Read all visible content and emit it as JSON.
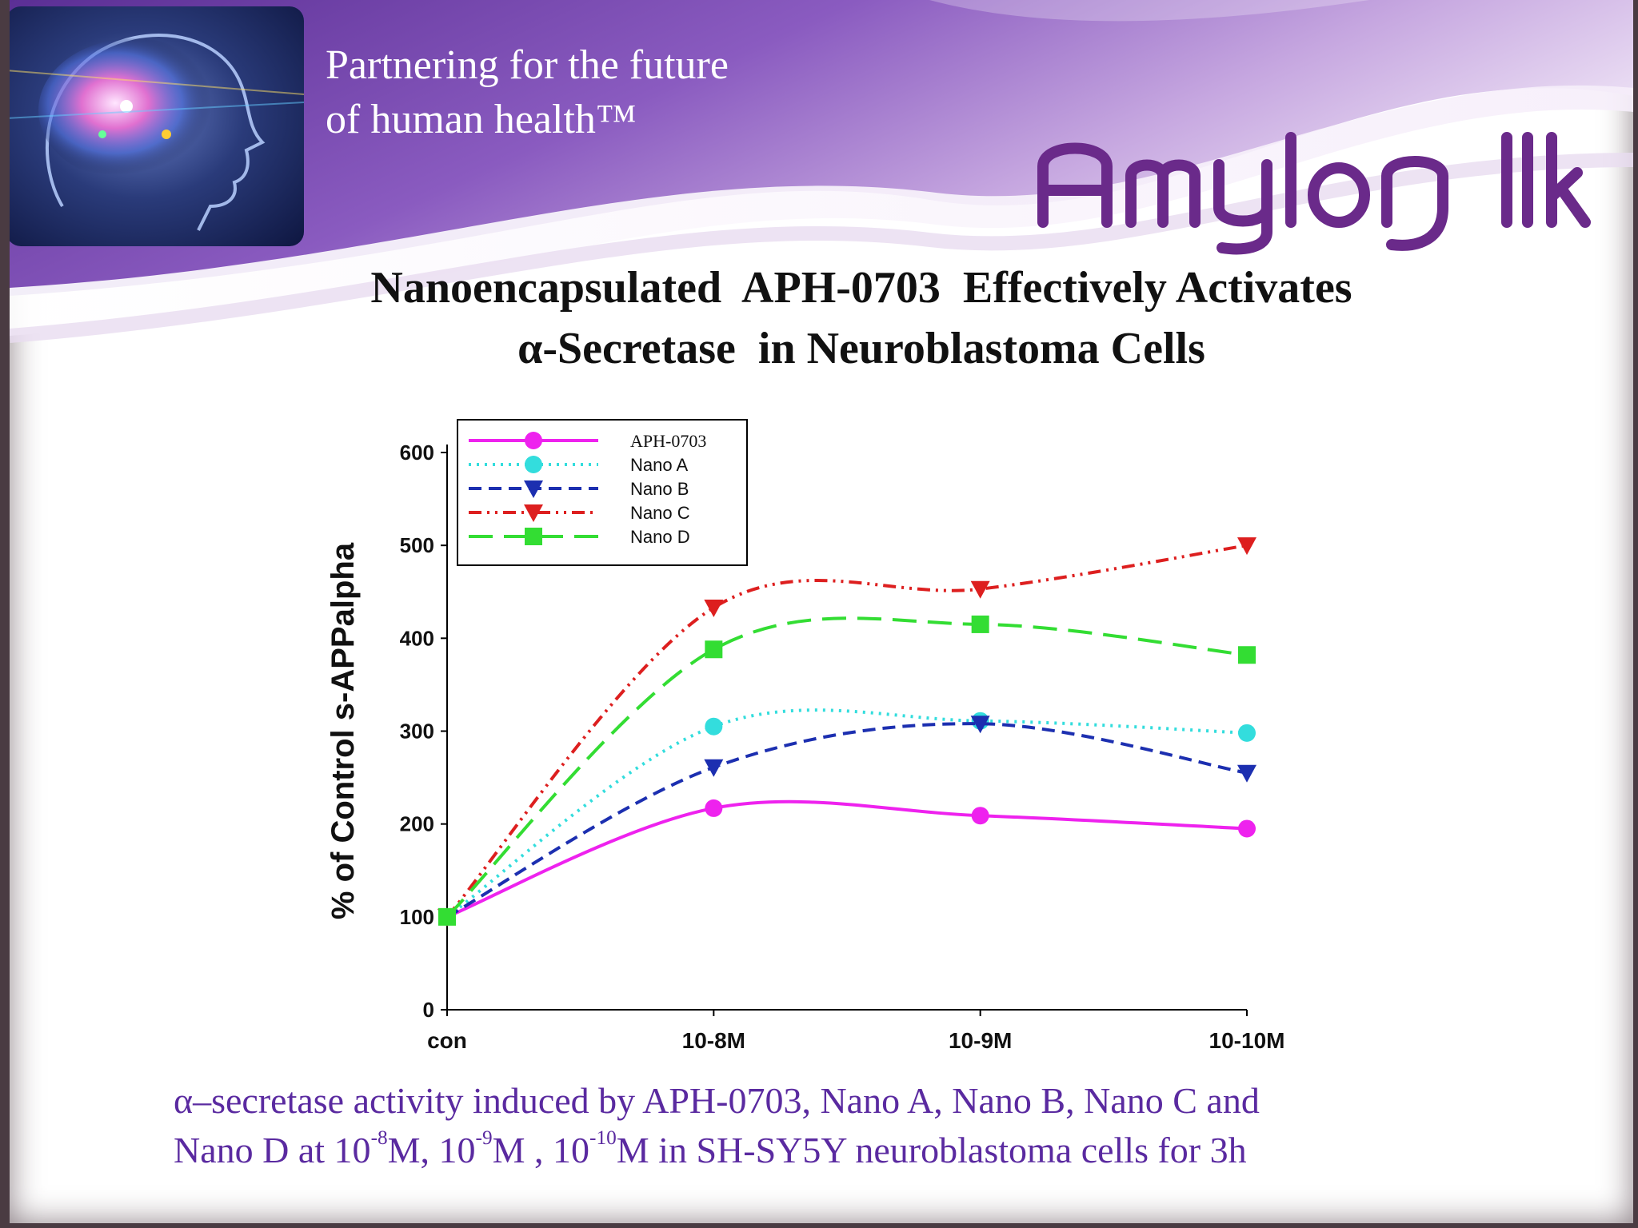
{
  "header": {
    "tagline_line1": "Partnering for the future",
    "tagline_line2": "of human health™",
    "logo_text": "Amylon llc"
  },
  "slide": {
    "title_line1": "Nanoencapsulated  APH-0703  Effectively Activates",
    "title_line2": "α-Secretase  in Neuroblastoma Cells"
  },
  "caption": {
    "line1": "α–secretase activity induced by APH-0703, Nano A, Nano B, Nano C and",
    "line2_a": "Nano D at 10",
    "line2_sup1": "-8",
    "line2_b": "M, 10",
    "line2_sup2": "-9",
    "line2_c": "M , 10",
    "line2_sup3": "-10",
    "line2_d": "M in SH-SY5Y neuroblastoma cells for 3h"
  },
  "colors": {
    "banner_purple": "#7a4fb0",
    "logo_purple": "#6a2a8a",
    "caption_purple": "#5a2aa0"
  },
  "chart_data": {
    "type": "line",
    "title": "",
    "xlabel": "",
    "ylabel": "% of Control s-APPalpha",
    "categories": [
      "con",
      "10-8M",
      "10-9M",
      "10-10M"
    ],
    "ylim": [
      0,
      600
    ],
    "yticks": [
      "0",
      "100",
      "200",
      "300",
      "400",
      "500",
      "600"
    ],
    "legend_position": "top-left",
    "grid": false,
    "series": [
      {
        "name": "APH-0703",
        "values": [
          100,
          217,
          209,
          195
        ],
        "color": "#ee22ee",
        "dash": "",
        "marker": "circle"
      },
      {
        "name": "Nano A",
        "values": [
          100,
          305,
          311,
          298
        ],
        "color": "#33dddd",
        "dash": "3,7",
        "marker": "circle"
      },
      {
        "name": "Nano B",
        "values": [
          100,
          261,
          308,
          255
        ],
        "color": "#1c2fb0",
        "dash": "16,9",
        "marker": "triangle-down"
      },
      {
        "name": "Nano C",
        "values": [
          100,
          433,
          453,
          500
        ],
        "color": "#dd1f1f",
        "dash": "16,7,3,7,3,7",
        "marker": "triangle-down"
      },
      {
        "name": "Nano D",
        "values": [
          100,
          388,
          415,
          382
        ],
        "color": "#33dd33",
        "dash": "30,14",
        "marker": "square"
      }
    ]
  }
}
